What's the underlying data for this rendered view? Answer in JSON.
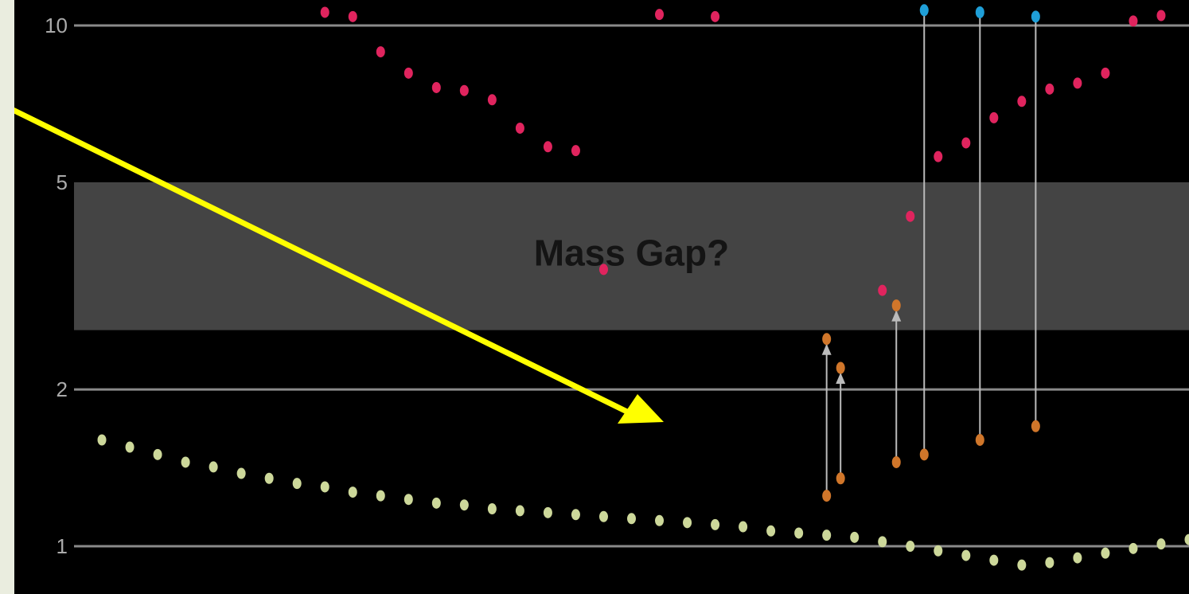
{
  "chart_data": {
    "type": "scatter",
    "title": "",
    "xlabel": "",
    "ylabel": "",
    "y_scale": "log",
    "ylim": [
      0.88,
      10.5
    ],
    "y_ticks": [
      {
        "value": 10,
        "label": "10"
      },
      {
        "value": 5,
        "label": "5"
      },
      {
        "value": 2,
        "label": "2"
      },
      {
        "value": 1,
        "label": "1"
      }
    ],
    "band": {
      "from": 2.6,
      "to": 5.0,
      "label": "Mass Gap?",
      "color": "#444444"
    },
    "colors": {
      "x_ray": "#e0245e",
      "black_hole": "#1f9fd8",
      "neutron_star_merger": "#d0762a",
      "neutron_star": "#cdd89a",
      "arrow": "#ffff00",
      "background": "#000000",
      "gridline": "#8a8a8a",
      "stem": "#bbbbbb"
    },
    "series": [
      {
        "key": "x_ray",
        "values": [
          [
            0.45,
            10.6
          ],
          [
            0.5,
            10.4
          ],
          [
            0.55,
            8.9
          ],
          [
            0.6,
            8.1
          ],
          [
            0.65,
            7.6
          ],
          [
            0.7,
            7.5
          ],
          [
            0.75,
            7.2
          ],
          [
            0.8,
            6.35
          ],
          [
            0.85,
            5.85
          ],
          [
            0.9,
            5.75
          ],
          [
            0.95,
            3.4
          ],
          [
            1.05,
            10.5
          ],
          [
            1.15,
            10.4
          ],
          [
            1.45,
            3.1
          ],
          [
            1.5,
            4.3
          ],
          [
            1.55,
            5.6
          ],
          [
            1.6,
            5.95
          ],
          [
            1.65,
            6.65
          ],
          [
            1.7,
            7.15
          ],
          [
            1.75,
            7.55
          ],
          [
            1.8,
            7.75
          ],
          [
            1.85,
            8.1
          ],
          [
            1.9,
            10.2
          ],
          [
            1.95,
            10.45
          ]
        ]
      },
      {
        "key": "neutron_star",
        "values": [
          [
            0.05,
            1.6
          ],
          [
            0.1,
            1.55
          ],
          [
            0.15,
            1.5
          ],
          [
            0.2,
            1.45
          ],
          [
            0.25,
            1.42
          ],
          [
            0.3,
            1.38
          ],
          [
            0.35,
            1.35
          ],
          [
            0.4,
            1.32
          ],
          [
            0.45,
            1.3
          ],
          [
            0.5,
            1.27
          ],
          [
            0.55,
            1.25
          ],
          [
            0.6,
            1.23
          ],
          [
            0.65,
            1.21
          ],
          [
            0.7,
            1.2
          ],
          [
            0.75,
            1.18
          ],
          [
            0.8,
            1.17
          ],
          [
            0.85,
            1.16
          ],
          [
            0.9,
            1.15
          ],
          [
            0.95,
            1.14
          ],
          [
            1.0,
            1.13
          ],
          [
            1.05,
            1.12
          ],
          [
            1.1,
            1.11
          ],
          [
            1.15,
            1.1
          ],
          [
            1.2,
            1.09
          ],
          [
            1.25,
            1.07
          ],
          [
            1.3,
            1.06
          ],
          [
            1.35,
            1.05
          ],
          [
            1.4,
            1.04
          ],
          [
            1.45,
            1.02
          ],
          [
            1.5,
            1.0
          ],
          [
            1.55,
            0.98
          ],
          [
            1.6,
            0.96
          ],
          [
            1.65,
            0.94
          ],
          [
            1.7,
            0.92
          ],
          [
            1.75,
            0.93
          ],
          [
            1.8,
            0.95
          ],
          [
            1.85,
            0.97
          ],
          [
            1.9,
            0.99
          ],
          [
            1.95,
            1.01
          ],
          [
            2.0,
            1.03
          ],
          [
            2.05,
            1.05
          ],
          [
            2.1,
            1.07
          ],
          [
            2.15,
            1.09
          ],
          [
            2.2,
            1.11
          ],
          [
            2.25,
            1.13
          ],
          [
            2.3,
            1.15
          ],
          [
            2.35,
            1.18
          ],
          [
            2.4,
            1.21
          ]
        ]
      }
    ],
    "mergers": [
      {
        "from": [
          1.5,
          1.55
        ],
        "to": 10.7,
        "type": "black_hole",
        "color": "#1f9fd8"
      },
      {
        "from": [
          1.6,
          1.65
        ],
        "to": 10.6,
        "type": "black_hole",
        "color": "#1f9fd8"
      },
      {
        "from": [
          1.7,
          1.75
        ],
        "to": 10.4,
        "type": "black_hole",
        "color": "#1f9fd8"
      },
      {
        "from": [
          1.35,
          1.4
        ],
        "to": 2.2,
        "type": "neutron_star_merger",
        "color": "#d0762a"
      },
      {
        "from": [
          1.25,
          1.45
        ],
        "to": 2.5,
        "type": "neutron_star_merger",
        "color": "#d0762a"
      },
      {
        "from": [
          1.45,
          1.5
        ],
        "to": 2.9,
        "type": "neutron_star_merger",
        "color": "#d0762a"
      }
    ]
  }
}
